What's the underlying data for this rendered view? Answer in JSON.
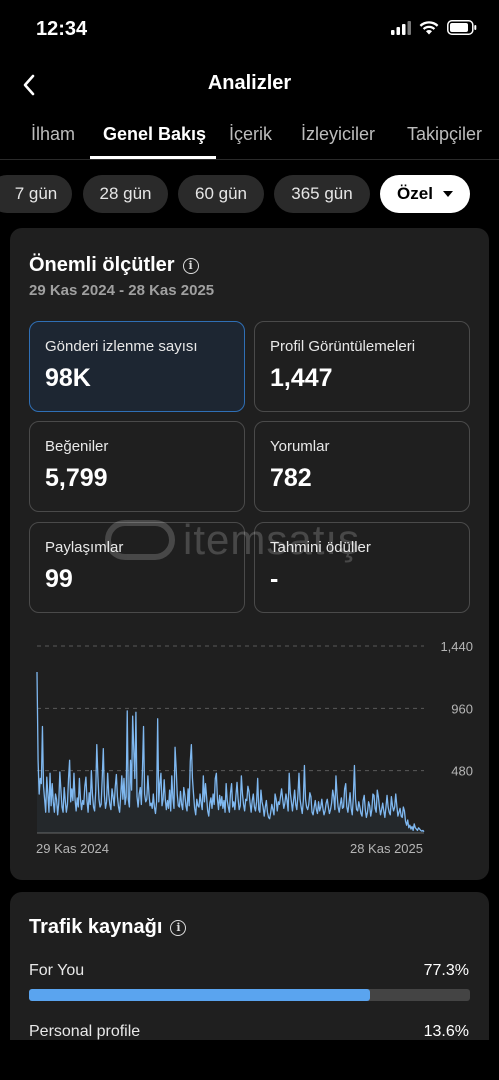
{
  "status": {
    "time": "12:34"
  },
  "header": {
    "title": "Analizler"
  },
  "tabs": [
    {
      "label": "İlham"
    },
    {
      "label": "Genel Bakış"
    },
    {
      "label": "İçerik"
    },
    {
      "label": "İzleyiciler"
    },
    {
      "label": "Takipçiler"
    }
  ],
  "period_pills": [
    {
      "label": "7 gün"
    },
    {
      "label": "28 gün"
    },
    {
      "label": "60 gün"
    },
    {
      "label": "365 gün"
    },
    {
      "label": "Özel"
    }
  ],
  "key_metrics": {
    "title": "Önemli ölçütler",
    "date_range": "29 Kas 2024 - 28 Kas 2025",
    "items": [
      {
        "label": "Gönderi izlenme sayısı",
        "value": "98K"
      },
      {
        "label": "Profil Görüntülemeleri",
        "value": "1,447"
      },
      {
        "label": "Beğeniler",
        "value": "5,799"
      },
      {
        "label": "Yorumlar",
        "value": "782"
      },
      {
        "label": "Paylaşımlar",
        "value": "99"
      },
      {
        "label": "Tahmini ödüller",
        "value": "-"
      }
    ]
  },
  "watermark": {
    "text": "itemsatış"
  },
  "chart_data": {
    "type": "line",
    "x_start_label": "29 Kas 2024",
    "x_end_label": "28 Kas 2025",
    "y_ticks": [
      "1,440",
      "960",
      "480"
    ],
    "ylim": [
      0,
      1440
    ],
    "line_color": "#7fb8f0",
    "values": [
      1240,
      560,
      300,
      420,
      380,
      820,
      360,
      260,
      160,
      430,
      300,
      160,
      460,
      210,
      380,
      240,
      160,
      300,
      260,
      140,
      230,
      470,
      330,
      200,
      160,
      350,
      250,
      160,
      220,
      420,
      560,
      240,
      340,
      250,
      460,
      260,
      170,
      270,
      200,
      420,
      260,
      180,
      250,
      220,
      360,
      430,
      250,
      160,
      310,
      220,
      480,
      300,
      200,
      170,
      320,
      680,
      440,
      260,
      200,
      220,
      420,
      650,
      290,
      190,
      240,
      460,
      300,
      220,
      180,
      340,
      280,
      210,
      360,
      450,
      280,
      200,
      160,
      290,
      440,
      260,
      420,
      220,
      280,
      940,
      260,
      200,
      560,
      330,
      900,
      650,
      420,
      930,
      280,
      200,
      300,
      350,
      220,
      480,
      820,
      300,
      240,
      260,
      440,
      300,
      210,
      230,
      190,
      300,
      200,
      150,
      240,
      880,
      240,
      380,
      460,
      210,
      260,
      410,
      260,
      180,
      250,
      190,
      330,
      170,
      440,
      270,
      190,
      660,
      500,
      300,
      210,
      200,
      320,
      220,
      180,
      350,
      290,
      210,
      170,
      340,
      210,
      550,
      680,
      420,
      300,
      190,
      140,
      260,
      210,
      200,
      300,
      230,
      180,
      440,
      240,
      380,
      280,
      170,
      130,
      230,
      270,
      190,
      300,
      220,
      420,
      460,
      260,
      180,
      290,
      210,
      280,
      190,
      250,
      160,
      380,
      250,
      200,
      160,
      310,
      380,
      200,
      240,
      180,
      290,
      390,
      260,
      180,
      210,
      440,
      300,
      220,
      170,
      260,
      250,
      360,
      320,
      230,
      160,
      250,
      300,
      200,
      170,
      240,
      420,
      180,
      160,
      330,
      240,
      200,
      130,
      200,
      250,
      160,
      120,
      110,
      160,
      220,
      180,
      140,
      300,
      260,
      170,
      240,
      220,
      280,
      340,
      260,
      190,
      230,
      300,
      250,
      170,
      460,
      310,
      240,
      170,
      250,
      330,
      220,
      180,
      290,
      460,
      260,
      200,
      150,
      250,
      520,
      260,
      200,
      180,
      220,
      310,
      280,
      160,
      140,
      200,
      250,
      180,
      150,
      240,
      170,
      200,
      260,
      190,
      140,
      170,
      230,
      260,
      200,
      150,
      180,
      230,
      330,
      280,
      180,
      440,
      300,
      200,
      160,
      220,
      270,
      190,
      200,
      340,
      380,
      200,
      160,
      230,
      310,
      190,
      140,
      280,
      520,
      260,
      180,
      170,
      240,
      200,
      150,
      130,
      250,
      290,
      180,
      120,
      160,
      240,
      210,
      130,
      180,
      300,
      290,
      190,
      160,
      330,
      280,
      200,
      140,
      180,
      230,
      170,
      120,
      200,
      290,
      200,
      160,
      140,
      280,
      210,
      170,
      200,
      300,
      210,
      130,
      160,
      190,
      130,
      120,
      200,
      170,
      90,
      60,
      100,
      40,
      60,
      30,
      50,
      20,
      70,
      40,
      30,
      20,
      40,
      30,
      20,
      15,
      20,
      10
    ]
  },
  "traffic": {
    "title": "Trafik kaynağı",
    "rows": [
      {
        "label": "For You",
        "value": "77.3%",
        "percent": 77.3
      },
      {
        "label": "Personal profile",
        "value": "13.6%",
        "percent": 13.6
      }
    ]
  },
  "colors": {
    "accent": "#5aa4ef",
    "selected_border": "#2f6fb5"
  }
}
